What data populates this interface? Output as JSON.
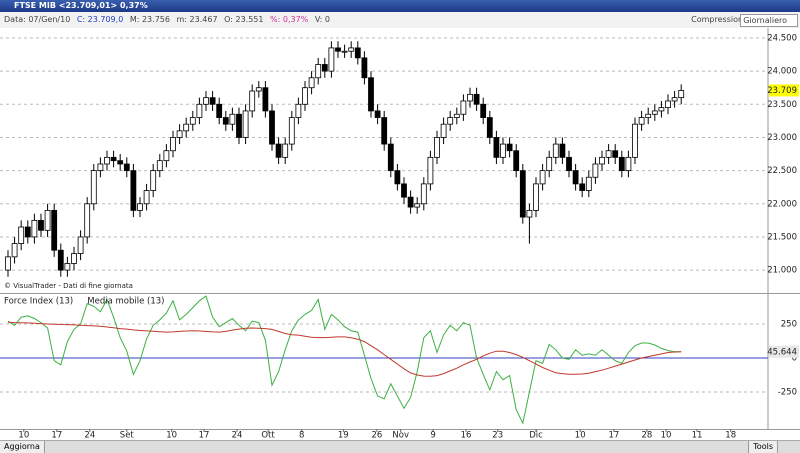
{
  "window": {
    "title": "FTSE MIB <23.709,01> 0,37%"
  },
  "info": {
    "date": "Data: 07/Gen/10",
    "close": "C: 23.709,0",
    "max": "M: 23.756",
    "min": "m: 23.467",
    "open": "O: 23.551",
    "pct": "%: 0,37%",
    "vol": "V: 0",
    "compression_label": "Compressione",
    "compression": "Giornaliero"
  },
  "footer": {
    "refresh": "Aggiorna",
    "tools": "Tools"
  },
  "chart_data": [
    {
      "type": "candlestick",
      "annotation": "© VisualTrader - Dati di fine giornata",
      "up_color": "#ffffff",
      "down_color": "#000000",
      "grid": true,
      "xlim": [
        -1.21,
        115.15
      ],
      "ylim": [
        20670,
        24620
      ],
      "yticks": [
        {
          "value": 21000,
          "label": "21.000"
        },
        {
          "value": 21500,
          "label": "21.500"
        },
        {
          "value": 22000,
          "label": "22.000"
        },
        {
          "value": 22500,
          "label": "22.500"
        },
        {
          "value": 23000,
          "label": "23.000"
        },
        {
          "value": 23500,
          "label": "23.500"
        },
        {
          "value": 24000,
          "label": "24.000"
        },
        {
          "value": 24500,
          "label": "24.500"
        }
      ],
      "current": {
        "value": 23709,
        "label": "23.709"
      },
      "current_color": "#ffff00",
      "open": [
        21000,
        21200,
        21400,
        21650,
        21500,
        21750,
        21600,
        21900,
        21300,
        21000,
        21100,
        21250,
        21500,
        22000,
        22500,
        22600,
        22700,
        22650,
        22600,
        22500,
        21900,
        22000,
        22200,
        22500,
        22650,
        22800,
        23000,
        23100,
        23200,
        23300,
        23500,
        23600,
        23500,
        23300,
        23200,
        23350,
        23000,
        23400,
        23700,
        23750,
        23400,
        22900,
        22700,
        22900,
        23300,
        23500,
        23750,
        23900,
        24100,
        24000,
        24350,
        24300,
        24300,
        24350,
        24200,
        23900,
        23400,
        23300,
        22900,
        22500,
        22300,
        22100,
        21950,
        22000,
        22300,
        22700,
        23000,
        23200,
        23300,
        23350,
        23550,
        23650,
        23500,
        23300,
        23000,
        22700,
        22900,
        22800,
        22500,
        21800,
        21900,
        22300,
        22500,
        22700,
        22900,
        22700,
        22500,
        22300,
        22200,
        22400,
        22600,
        22700,
        22800,
        22700,
        22500,
        22700,
        23200,
        23300,
        23350,
        23400,
        23450,
        23550,
        23600
      ],
      "high": [
        21300,
        21500,
        21750,
        21750,
        21850,
        21850,
        22000,
        22000,
        21400,
        21200,
        21350,
        21600,
        22100,
        22600,
        22700,
        22800,
        22800,
        22750,
        22700,
        22600,
        22100,
        22300,
        22600,
        22750,
        22900,
        23100,
        23200,
        23300,
        23400,
        23600,
        23700,
        23700,
        23600,
        23400,
        23450,
        23450,
        23500,
        23800,
        23850,
        23850,
        23500,
        23000,
        23000,
        23400,
        23600,
        23850,
        24000,
        24200,
        24200,
        24450,
        24450,
        24400,
        24450,
        24450,
        24300,
        24000,
        23500,
        23400,
        23000,
        22600,
        22400,
        22200,
        22100,
        22400,
        22800,
        23100,
        23300,
        23400,
        23450,
        23650,
        23750,
        23750,
        23600,
        23400,
        23100,
        23000,
        23000,
        22900,
        22600,
        22000,
        22400,
        22600,
        22800,
        23000,
        23000,
        22800,
        22600,
        22400,
        22500,
        22700,
        22800,
        22900,
        22900,
        22800,
        22800,
        23300,
        23400,
        23450,
        23500,
        23550,
        23650,
        23700,
        23800
      ],
      "low": [
        20900,
        21100,
        21300,
        21400,
        21400,
        21500,
        21500,
        21200,
        20900,
        20900,
        21000,
        21150,
        21400,
        21900,
        22400,
        22500,
        22550,
        22500,
        22400,
        21800,
        21800,
        21900,
        22100,
        22400,
        22550,
        22700,
        22900,
        23000,
        23100,
        23200,
        23400,
        23400,
        23200,
        23100,
        23100,
        22900,
        22900,
        23300,
        23600,
        23300,
        22800,
        22600,
        22600,
        22800,
        23200,
        23400,
        23650,
        23800,
        23900,
        23900,
        24200,
        24200,
        24200,
        24100,
        23800,
        23300,
        23200,
        22800,
        22400,
        22200,
        22000,
        21850,
        21850,
        21900,
        22200,
        22600,
        22900,
        23100,
        23200,
        23250,
        23450,
        23400,
        23200,
        22900,
        22600,
        22600,
        22700,
        22400,
        21700,
        21400,
        21800,
        22200,
        22400,
        22600,
        22600,
        22400,
        22200,
        22100,
        22100,
        22300,
        22500,
        22600,
        22600,
        22400,
        22400,
        22600,
        23100,
        23200,
        23250,
        23300,
        23350,
        23450,
        23500
      ],
      "close": [
        21200,
        21400,
        21650,
        21500,
        21750,
        21600,
        21900,
        21300,
        21000,
        21100,
        21250,
        21500,
        22000,
        22500,
        22600,
        22700,
        22650,
        22600,
        22500,
        21900,
        22000,
        22200,
        22500,
        22650,
        22800,
        23000,
        23100,
        23200,
        23300,
        23500,
        23600,
        23500,
        23300,
        23200,
        23350,
        23000,
        23400,
        23700,
        23750,
        23400,
        22900,
        22700,
        22900,
        23300,
        23500,
        23750,
        23900,
        24100,
        24000,
        24350,
        24300,
        24300,
        24350,
        24200,
        23900,
        23400,
        23300,
        22900,
        22500,
        22300,
        22100,
        21950,
        22000,
        22300,
        22700,
        23000,
        23200,
        23300,
        23350,
        23550,
        23650,
        23500,
        23300,
        23000,
        22700,
        22900,
        22800,
        22500,
        21800,
        21900,
        22300,
        22500,
        22700,
        22900,
        22700,
        22500,
        22300,
        22200,
        22400,
        22600,
        22700,
        22800,
        22700,
        22500,
        22700,
        23200,
        23300,
        23350,
        23400,
        23450,
        23550,
        23600,
        23709
      ]
    },
    {
      "type": "line",
      "grid": true,
      "zero_color": "#3040c0",
      "xlim": [
        -1.21,
        115.15
      ],
      "ylim": [
        -515,
        463
      ],
      "yticks": [
        -250,
        0,
        250
      ],
      "current": 45.644,
      "current_color": "#3cb043",
      "xticks": [
        {
          "value": 2.4,
          "label": "10"
        },
        {
          "value": 7.4,
          "label": "17"
        },
        {
          "value": 12.4,
          "label": "24"
        },
        {
          "value": 18,
          "label": "Set"
        },
        {
          "value": 24.8,
          "label": "10"
        },
        {
          "value": 29.7,
          "label": "17"
        },
        {
          "value": 34.7,
          "label": "24"
        },
        {
          "value": 39.4,
          "label": "Ott"
        },
        {
          "value": 44.5,
          "label": "8"
        },
        {
          "value": 50.8,
          "label": "19"
        },
        {
          "value": 55.9,
          "label": "26"
        },
        {
          "value": 59.5,
          "label": "Nov"
        },
        {
          "value": 64.4,
          "label": "9"
        },
        {
          "value": 69.4,
          "label": "16"
        },
        {
          "value": 74.2,
          "label": "23"
        },
        {
          "value": 80,
          "label": "Dic"
        },
        {
          "value": 86.7,
          "label": "10"
        },
        {
          "value": 91.8,
          "label": "17"
        },
        {
          "value": 96.8,
          "label": "28"
        },
        {
          "value": 99.7,
          "label": "10"
        },
        {
          "value": 104.4,
          "label": "11"
        },
        {
          "value": 109.5,
          "label": "18"
        }
      ],
      "series": [
        {
          "name": "Force Index (13)",
          "color": "#3cb043",
          "values": [
            270,
            240,
            300,
            310,
            290,
            260,
            220,
            -20,
            -50,
            120,
            210,
            250,
            400,
            380,
            340,
            430,
            300,
            150,
            50,
            -120,
            -20,
            140,
            240,
            280,
            330,
            420,
            280,
            320,
            370,
            420,
            455,
            300,
            230,
            260,
            290,
            240,
            200,
            270,
            260,
            130,
            -200,
            -100,
            60,
            200,
            280,
            320,
            350,
            430,
            210,
            320,
            280,
            230,
            200,
            190,
            20,
            -150,
            -280,
            -300,
            -190,
            -280,
            -370,
            -290,
            -100,
            150,
            200,
            40,
            170,
            240,
            200,
            260,
            240,
            0,
            -120,
            -235,
            -100,
            -160,
            -130,
            -380,
            -480,
            -250,
            -20,
            -40,
            100,
            60,
            0,
            -10,
            60,
            20,
            30,
            20,
            60,
            20,
            -20,
            -40,
            40,
            90,
            110,
            110,
            95,
            70,
            55,
            45,
            45.644
          ]
        },
        {
          "name": "Media mobile (13)",
          "color": "#c0392b",
          "values": [
            262,
            260,
            259,
            258,
            256,
            253,
            250,
            248,
            246,
            245,
            243,
            240,
            238,
            236,
            233,
            228,
            222,
            216,
            212,
            206,
            202,
            199,
            196,
            193,
            190,
            192,
            195,
            198,
            200,
            198,
            195,
            192,
            190,
            195,
            205,
            212,
            218,
            220,
            218,
            216,
            210,
            195,
            180,
            170,
            168,
            160,
            153,
            150,
            150,
            152,
            155,
            155,
            148,
            138,
            120,
            90,
            60,
            25,
            -10,
            -45,
            -80,
            -110,
            -125,
            -133,
            -135,
            -130,
            -115,
            -95,
            -75,
            -50,
            -30,
            -10,
            15,
            35,
            50,
            50,
            40,
            25,
            5,
            -20,
            -45,
            -70,
            -90,
            -108,
            -115,
            -120,
            -120,
            -118,
            -112,
            -100,
            -90,
            -75,
            -60,
            -45,
            -30,
            -15,
            0,
            10,
            20,
            30,
            40,
            44,
            45
          ]
        }
      ]
    }
  ]
}
